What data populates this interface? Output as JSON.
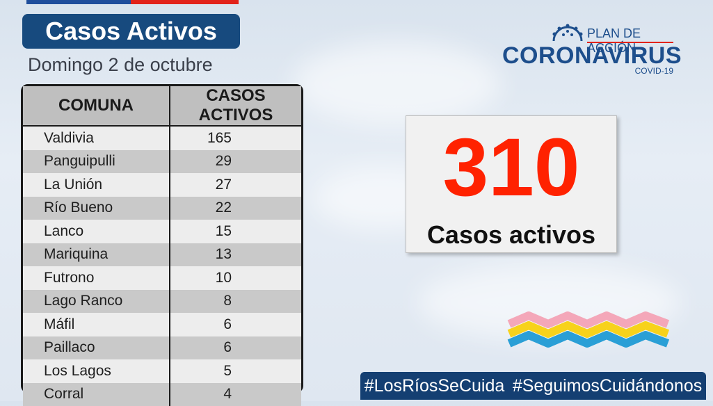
{
  "header": {
    "title": "Casos Activos",
    "date": "Domingo 2 de octubre"
  },
  "logo": {
    "plan": "PLAN DE ACCIÓN",
    "name": "CORONAVIRUS",
    "sub": "COVID-19"
  },
  "table": {
    "columns": [
      "COMUNA",
      "CASOS ACTIVOS"
    ],
    "rows": [
      {
        "comuna": "Valdivia",
        "casos": "165"
      },
      {
        "comuna": "Panguipulli",
        "casos": "29"
      },
      {
        "comuna": "La Unión",
        "casos": "27"
      },
      {
        "comuna": "Río Bueno",
        "casos": "22"
      },
      {
        "comuna": "Lanco",
        "casos": "15"
      },
      {
        "comuna": "Mariquina",
        "casos": "13"
      },
      {
        "comuna": "Futrono",
        "casos": "10"
      },
      {
        "comuna": "Lago Ranco",
        "casos": "8"
      },
      {
        "comuna": "Máfil",
        "casos": "6"
      },
      {
        "comuna": "Paillaco",
        "casos": "6"
      },
      {
        "comuna": "Los Lagos",
        "casos": "5"
      },
      {
        "comuna": "Corral",
        "casos": "4"
      }
    ]
  },
  "total": {
    "value": "310",
    "label": "Casos activos"
  },
  "hashtags": [
    "#LosRíosSeCuida",
    "#SeguimosCuidándonos"
  ],
  "colors": {
    "navy": "#174a7e",
    "red": "#ff2200",
    "wave_pink": "#f4a7b9",
    "wave_yellow": "#f7d21b",
    "wave_blue": "#2a9fd6"
  }
}
